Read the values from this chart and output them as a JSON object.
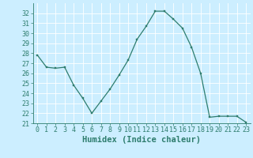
{
  "x": [
    0,
    1,
    2,
    3,
    4,
    5,
    6,
    7,
    8,
    9,
    10,
    11,
    12,
    13,
    14,
    15,
    16,
    17,
    18,
    19,
    20,
    21,
    22,
    23
  ],
  "y": [
    27.8,
    26.6,
    26.5,
    26.6,
    24.8,
    23.5,
    22.0,
    23.2,
    24.4,
    25.8,
    27.3,
    29.4,
    30.7,
    32.2,
    32.2,
    31.4,
    30.5,
    28.6,
    26.0,
    21.6,
    21.7,
    21.7,
    21.7,
    21.1
  ],
  "xlabel": "Humidex (Indice chaleur)",
  "ylim": [
    21,
    33
  ],
  "xlim": [
    -0.5,
    23.5
  ],
  "yticks": [
    21,
    22,
    23,
    24,
    25,
    26,
    27,
    28,
    29,
    30,
    31,
    32
  ],
  "xticks": [
    0,
    1,
    2,
    3,
    4,
    5,
    6,
    7,
    8,
    9,
    10,
    11,
    12,
    13,
    14,
    15,
    16,
    17,
    18,
    19,
    20,
    21,
    22,
    23
  ],
  "line_color": "#2e7d6e",
  "marker_color": "#2e7d6e",
  "bg_color": "#cceeff",
  "grid_color": "#ffffff",
  "tick_color": "#2e7d6e",
  "label_color": "#2e7d6e",
  "xlabel_fontsize": 7.5,
  "tick_fontsize": 6.0
}
